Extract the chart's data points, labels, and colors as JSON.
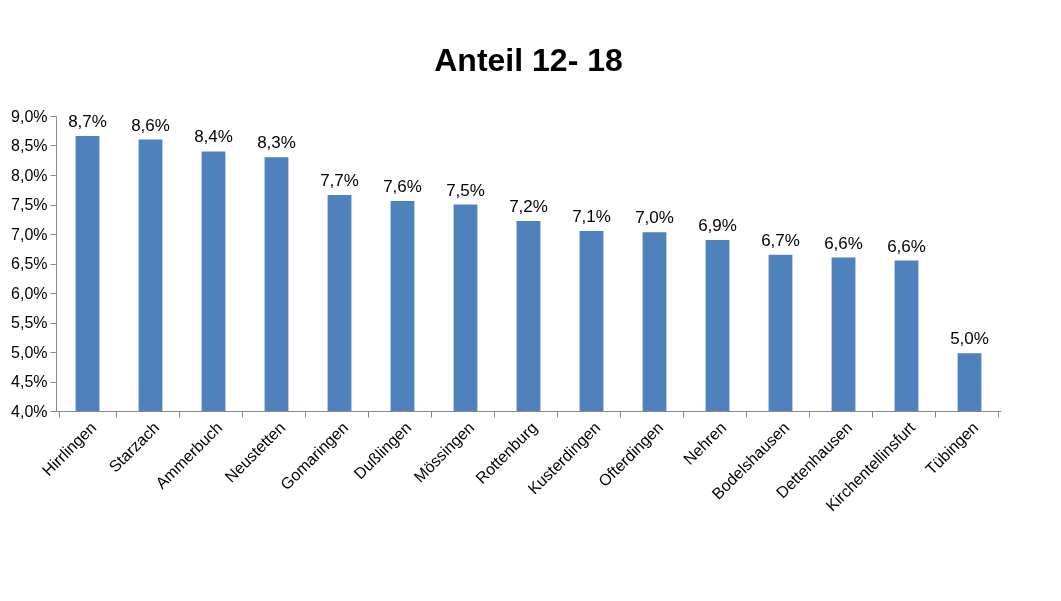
{
  "chart_data": {
    "type": "bar",
    "title": "Anteil 12- 18",
    "categories": [
      "Hirrlingen",
      "Starzach",
      "Ammerbuch",
      "Neustetten",
      "Gomaringen",
      "Dußlingen",
      "Mössingen",
      "Rottenburg",
      "Kusterdingen",
      "Ofterdingen",
      "Nehren",
      "Bodelshausen",
      "Dettenhausen",
      "Kirchentellinsfurt",
      "Tübingen"
    ],
    "values": [
      8.66,
      8.6,
      8.4,
      8.3,
      7.66,
      7.56,
      7.5,
      7.22,
      7.05,
      7.03,
      6.9,
      6.65,
      6.6,
      6.55,
      4.98
    ],
    "value_labels": [
      "8,7%",
      "8,6%",
      "8,4%",
      "8,3%",
      "7,7%",
      "7,6%",
      "7,5%",
      "7,2%",
      "7,1%",
      "7,0%",
      "6,9%",
      "6,7%",
      "6,6%",
      "6,6%",
      "5,0%"
    ],
    "color": "#4f81bd",
    "ylim": [
      4,
      9
    ],
    "yticks": [
      {
        "value": 4,
        "label": "4,0%"
      },
      {
        "value": 4.5,
        "label": "4,5%"
      },
      {
        "value": 5,
        "label": "5,0%"
      },
      {
        "value": 5.5,
        "label": "5,5%"
      },
      {
        "value": 6,
        "label": "6,0%"
      },
      {
        "value": 6.5,
        "label": "6,5%"
      },
      {
        "value": 7,
        "label": "7,0%"
      },
      {
        "value": 7.5,
        "label": "7,5%"
      },
      {
        "value": 8,
        "label": "8,0%"
      },
      {
        "value": 8.5,
        "label": "8,5%"
      },
      {
        "value": 9,
        "label": "9,0%"
      }
    ],
    "grid": false
  }
}
